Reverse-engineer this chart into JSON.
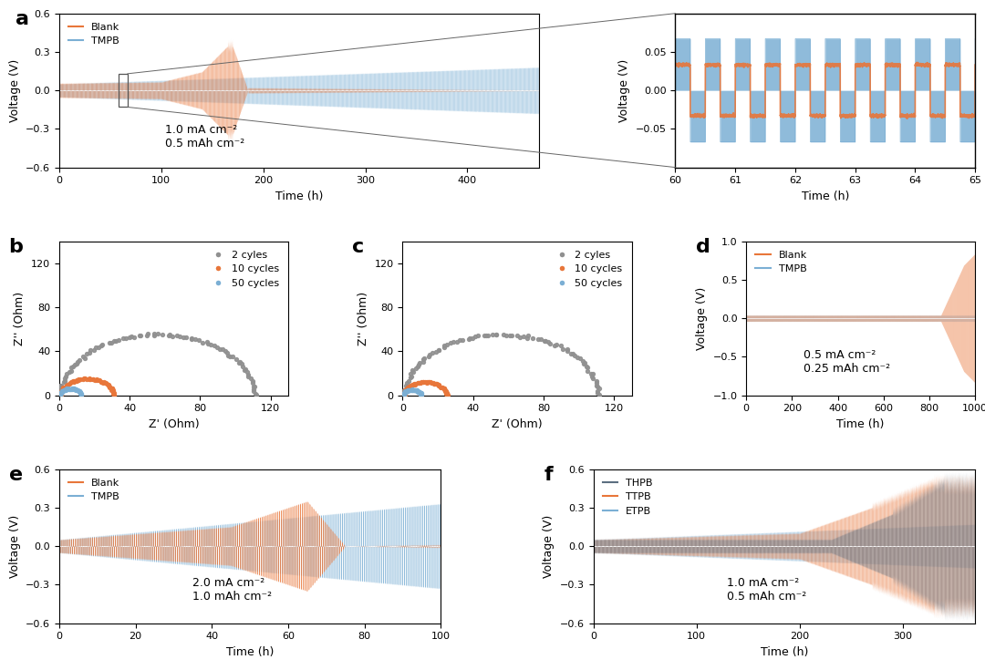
{
  "panel_a": {
    "blank_color": "#E8763A",
    "tmpb_color": "#7BAFD4",
    "xlim": [
      0,
      470
    ],
    "ylim": [
      -0.6,
      0.6
    ],
    "yticks": [
      -0.6,
      -0.3,
      0.0,
      0.3,
      0.6
    ],
    "xticks": [
      0,
      100,
      200,
      300,
      400
    ],
    "xlabel": "Time (h)",
    "ylabel": "Voltage (V)",
    "annotation": "1.0 mA cm⁻²\n0.5 mAh cm⁻²",
    "label": "a"
  },
  "panel_a_inset": {
    "xlim": [
      60,
      65
    ],
    "ylim": [
      -0.1,
      0.1
    ],
    "yticks": [
      -0.05,
      0.0,
      0.05
    ],
    "xticks": [
      60,
      61,
      62,
      63,
      64,
      65
    ],
    "xlabel": "Time (h)",
    "ylabel": "Voltage (V)"
  },
  "panel_b": {
    "colors": [
      "#909090",
      "#E8763A",
      "#7BAFD4"
    ],
    "labels": [
      "2 cyles",
      "10 cycles",
      "50 cycles"
    ],
    "xlim": [
      0,
      130
    ],
    "ylim": [
      0,
      140
    ],
    "yticks": [
      0,
      40,
      80,
      120
    ],
    "xticks": [
      0,
      40,
      80,
      120
    ],
    "xlabel": "Z' (Ohm)",
    "ylabel": "Z'' (Ohm)",
    "label": "b"
  },
  "panel_c": {
    "colors": [
      "#909090",
      "#E8763A",
      "#7BAFD4"
    ],
    "labels": [
      "2 cyles",
      "10 cycles",
      "50 cycles"
    ],
    "xlim": [
      0,
      130
    ],
    "ylim": [
      0,
      140
    ],
    "yticks": [
      0,
      40,
      80,
      120
    ],
    "xticks": [
      0,
      40,
      80,
      120
    ],
    "xlabel": "Z' (Ohm)",
    "ylabel": "Z'' (Ohm)",
    "label": "c"
  },
  "panel_d": {
    "blank_color": "#E8763A",
    "tmpb_color": "#7BAFD4",
    "xlim": [
      0,
      1000
    ],
    "ylim": [
      -1.0,
      1.0
    ],
    "yticks": [
      -1.0,
      -0.5,
      0.0,
      0.5,
      1.0
    ],
    "xticks": [
      0,
      200,
      400,
      600,
      800,
      1000
    ],
    "xlabel": "Time (h)",
    "ylabel": "Voltage (V)",
    "annotation": "0.5 mA cm⁻²\n0.25 mAh cm⁻²",
    "label": "d"
  },
  "panel_e": {
    "blank_color": "#E8763A",
    "tmpb_color": "#7BAFD4",
    "xlim": [
      0,
      100
    ],
    "ylim": [
      -0.6,
      0.6
    ],
    "yticks": [
      -0.6,
      -0.3,
      0.0,
      0.3,
      0.6
    ],
    "xticks": [
      0,
      20,
      40,
      60,
      80,
      100
    ],
    "xlabel": "Time (h)",
    "ylabel": "Voltage (V)",
    "annotation": "2.0 mA cm⁻²\n1.0 mAh cm⁻²",
    "label": "e"
  },
  "panel_f": {
    "thpb_color": "#5B6E80",
    "ttpb_color": "#E8763A",
    "etpb_color": "#7BAFD4",
    "xlim": [
      0,
      370
    ],
    "ylim": [
      -0.6,
      0.6
    ],
    "yticks": [
      -0.6,
      -0.3,
      0.0,
      0.3,
      0.6
    ],
    "xticks": [
      0,
      100,
      200,
      300
    ],
    "xlabel": "Time (h)",
    "ylabel": "Voltage (V)",
    "annotation": "1.0 mA cm⁻²\n0.5 mAh cm⁻²",
    "label": "f"
  },
  "bg_color": "#FFFFFF",
  "tick_fontsize": 8,
  "label_fontsize": 9,
  "annotation_fontsize": 9,
  "legend_fontsize": 8,
  "panel_label_fontsize": 16
}
